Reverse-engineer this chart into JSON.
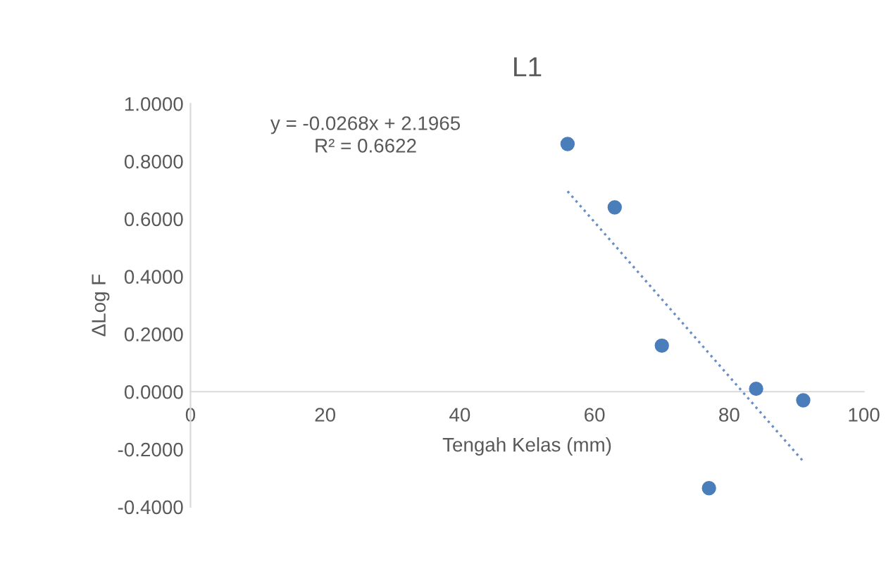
{
  "chart_data": {
    "type": "scatter",
    "title": "L1",
    "xlabel": "Tengah Kelas (mm)",
    "ylabel": "ΔLog F",
    "series": [
      {
        "color": "#4a7ebb",
        "x": [
          56,
          63,
          70,
          77,
          84,
          91
        ],
        "values": [
          0.86,
          0.64,
          0.16,
          -0.335,
          0.01,
          -0.03
        ],
        "marker": "circle"
      },
      {
        "type": "line",
        "color": "#6a8fc4",
        "x": [
          56,
          91
        ],
        "values": [
          0.696,
          -0.242
        ],
        "line_style": "dotted"
      }
    ],
    "annotations": [
      "y = -0.0268x + 2.1965\nR² = 0.6622"
    ],
    "xlim": [
      0,
      100
    ],
    "xticks": [
      0,
      20,
      40,
      60,
      80,
      100
    ],
    "ylim": [
      -0.4,
      1.0
    ],
    "yticks": [
      {
        "value": -0.4,
        "label": "-0.4000"
      },
      {
        "value": -0.2,
        "label": "-0.2000"
      },
      {
        "value": 0,
        "label": "0.0000"
      },
      {
        "value": 0.2,
        "label": "0.2000"
      },
      {
        "value": 0.4,
        "label": "0.4000"
      },
      {
        "value": 0.6,
        "label": "0.6000"
      },
      {
        "value": 0.8,
        "label": "0.8000"
      },
      {
        "value": 1.0,
        "label": "1.0000"
      }
    ],
    "grid": false,
    "legend": false
  }
}
